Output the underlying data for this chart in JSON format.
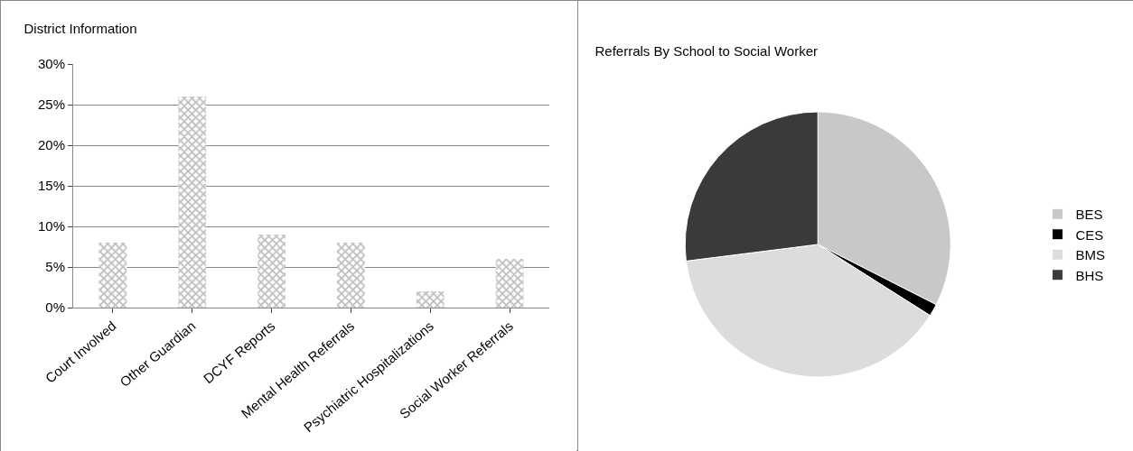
{
  "chart_data": [
    {
      "type": "bar",
      "title": "District Information",
      "categories": [
        "Court Involved",
        "Other Guardian",
        "DCYF Reports",
        "Mental Health Referrals",
        "Psychiatric Hospitalizations",
        "Social Worker Referrals"
      ],
      "values": [
        8,
        26,
        9,
        8,
        2,
        6
      ],
      "color": "#bdbdbd",
      "ylim": [
        0,
        30
      ],
      "yticks": [
        {
          "value": 0,
          "label": "0%"
        },
        {
          "value": 5,
          "label": "5%"
        },
        {
          "value": 10,
          "label": "10%"
        },
        {
          "value": 15,
          "label": "15%"
        },
        {
          "value": 20,
          "label": "20%"
        },
        {
          "value": 25,
          "label": "25%"
        },
        {
          "value": 30,
          "label": "30%"
        }
      ],
      "grid": "y",
      "legend": false
    },
    {
      "type": "pie",
      "title": "Referrals By School to Social Worker",
      "categories": [
        "BES",
        "CES",
        "BMS",
        "BHS"
      ],
      "values": [
        32.5,
        1.5,
        39,
        27
      ],
      "colors": [
        "#c8c8c8",
        "#000000",
        "#dcdcdc",
        "#3a3a3a"
      ],
      "legend": "right"
    }
  ]
}
